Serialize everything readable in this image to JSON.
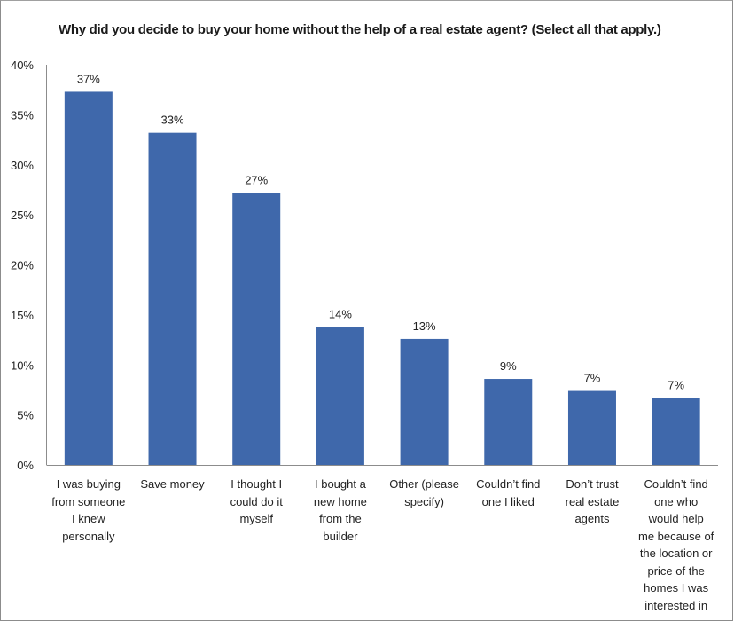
{
  "chart_data": {
    "type": "bar",
    "title": "Why did you decide to buy your home without the help of a real estate agent? (Select all that apply.)",
    "xlabel": "",
    "ylabel": "",
    "ylim": [
      0,
      40
    ],
    "yticks": [
      0,
      5,
      10,
      15,
      20,
      25,
      30,
      35,
      40
    ],
    "ytick_labels": [
      "0%",
      "5%",
      "10%",
      "15%",
      "20%",
      "25%",
      "30%",
      "35%",
      "40%"
    ],
    "grid": false,
    "legend": "none",
    "bar_color": "#3F68AB",
    "categories": [
      "I was buying from someone I knew personally",
      "Save money",
      "I thought I could do it myself",
      "I bought a new home from the builder",
      "Other (please specify)",
      "Couldn’t find one I liked",
      "Don’t trust real estate agents",
      "Couldn’t find one who would help me because of the location or price of the homes I was interested in"
    ],
    "category_lines": [
      [
        "I was buying",
        "from someone",
        "I knew",
        "personally"
      ],
      [
        "Save money"
      ],
      [
        "I thought I",
        "could do it",
        "myself"
      ],
      [
        "I bought a",
        "new home",
        "from the",
        "builder"
      ],
      [
        "Other (please",
        "specify)"
      ],
      [
        "Couldn’t find",
        "one I liked"
      ],
      [
        "Don’t trust",
        "real estate",
        "agents"
      ],
      [
        "Couldn’t find",
        "one who",
        "would help",
        "me because of",
        "the location or",
        "price of the",
        "homes I was",
        "interested in"
      ]
    ],
    "values": [
      37.3,
      33.2,
      27.2,
      13.8,
      12.6,
      8.6,
      7.4,
      6.7
    ],
    "data_labels": [
      "37%",
      "33%",
      "27%",
      "14%",
      "13%",
      "9%",
      "7%",
      "7%"
    ]
  }
}
